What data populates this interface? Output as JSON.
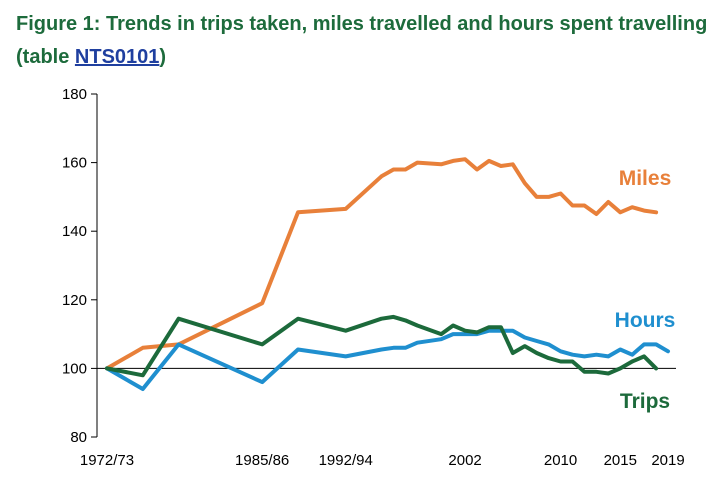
{
  "header": {
    "title_main": "Figure 1: Trends in trips taken, miles travelled and hours spent travelling (table ",
    "title_link": "NTS0101",
    "title_end": ")"
  },
  "colors": {
    "miles": "#e8803a",
    "hours": "#1f8fcf",
    "trips": "#1c6a3b",
    "title": "#1d6b3c",
    "link": "#1f3f9f"
  },
  "chart_data": {
    "type": "line",
    "title": "",
    "xlabel": "",
    "ylabel": "",
    "ylim": [
      80,
      180
    ],
    "yticks": [
      80,
      100,
      120,
      140,
      160,
      180
    ],
    "grid": false,
    "baseline": 100,
    "xlim": [
      1972,
      2019
    ],
    "xtick_labels": [
      {
        "x": 1972,
        "label": "1972/73"
      },
      {
        "x": 1985,
        "label": "1985/86"
      },
      {
        "x": 1992,
        "label": "1992/94"
      },
      {
        "x": 2002,
        "label": "2002"
      },
      {
        "x": 2010,
        "label": "2010"
      },
      {
        "x": 2015,
        "label": "2015"
      },
      {
        "x": 2019,
        "label": "2019"
      }
    ],
    "series": [
      {
        "name": "Miles",
        "key": "miles",
        "points": [
          [
            1972,
            100
          ],
          [
            1975,
            106
          ],
          [
            1978,
            107
          ],
          [
            1985,
            119
          ],
          [
            1988,
            145.5
          ],
          [
            1992,
            146.5
          ],
          [
            1995,
            156
          ],
          [
            1996,
            158
          ],
          [
            1997,
            158
          ],
          [
            1998,
            160
          ],
          [
            2000,
            159.5
          ],
          [
            2001,
            160.5
          ],
          [
            2002,
            161
          ],
          [
            2003,
            158
          ],
          [
            2004,
            160.5
          ],
          [
            2005,
            159
          ],
          [
            2006,
            159.5
          ],
          [
            2007,
            154
          ],
          [
            2008,
            150
          ],
          [
            2009,
            150
          ],
          [
            2010,
            151
          ],
          [
            2011,
            147.5
          ],
          [
            2012,
            147.5
          ],
          [
            2013,
            145
          ],
          [
            2014,
            148.5
          ],
          [
            2015,
            145.5
          ],
          [
            2016,
            147
          ],
          [
            2017,
            146
          ],
          [
            2018,
            145.5
          ]
        ]
      },
      {
        "name": "Hours",
        "key": "hours",
        "points": [
          [
            1972,
            100
          ],
          [
            1975,
            94
          ],
          [
            1978,
            107
          ],
          [
            1985,
            96
          ],
          [
            1988,
            105.5
          ],
          [
            1992,
            103.5
          ],
          [
            1995,
            105.5
          ],
          [
            1996,
            106
          ],
          [
            1997,
            106
          ],
          [
            1998,
            107.5
          ],
          [
            2000,
            108.5
          ],
          [
            2001,
            110
          ],
          [
            2002,
            110
          ],
          [
            2003,
            110
          ],
          [
            2004,
            111
          ],
          [
            2005,
            111
          ],
          [
            2006,
            111
          ],
          [
            2007,
            109
          ],
          [
            2008,
            108
          ],
          [
            2009,
            107
          ],
          [
            2010,
            105
          ],
          [
            2011,
            104
          ],
          [
            2012,
            103.5
          ],
          [
            2013,
            104
          ],
          [
            2014,
            103.5
          ],
          [
            2015,
            105.5
          ],
          [
            2016,
            104
          ],
          [
            2017,
            107
          ],
          [
            2018,
            107
          ],
          [
            2019,
            105
          ]
        ]
      },
      {
        "name": "Trips",
        "key": "trips",
        "points": [
          [
            1972,
            100
          ],
          [
            1975,
            98
          ],
          [
            1978,
            114.5
          ],
          [
            1985,
            107
          ],
          [
            1988,
            114.5
          ],
          [
            1992,
            111
          ],
          [
            1995,
            114.5
          ],
          [
            1996,
            115
          ],
          [
            1997,
            114
          ],
          [
            1998,
            112.5
          ],
          [
            2000,
            110
          ],
          [
            2001,
            112.5
          ],
          [
            2002,
            111
          ],
          [
            2003,
            110.5
          ],
          [
            2004,
            112
          ],
          [
            2005,
            112
          ],
          [
            2006,
            104.5
          ],
          [
            2007,
            106.5
          ],
          [
            2008,
            104.5
          ],
          [
            2009,
            103
          ],
          [
            2010,
            102
          ],
          [
            2011,
            102
          ],
          [
            2012,
            99
          ],
          [
            2013,
            99
          ],
          [
            2014,
            98.5
          ],
          [
            2015,
            100
          ],
          [
            2016,
            102
          ],
          [
            2017,
            103.5
          ],
          [
            2018,
            100
          ]
        ]
      }
    ]
  }
}
